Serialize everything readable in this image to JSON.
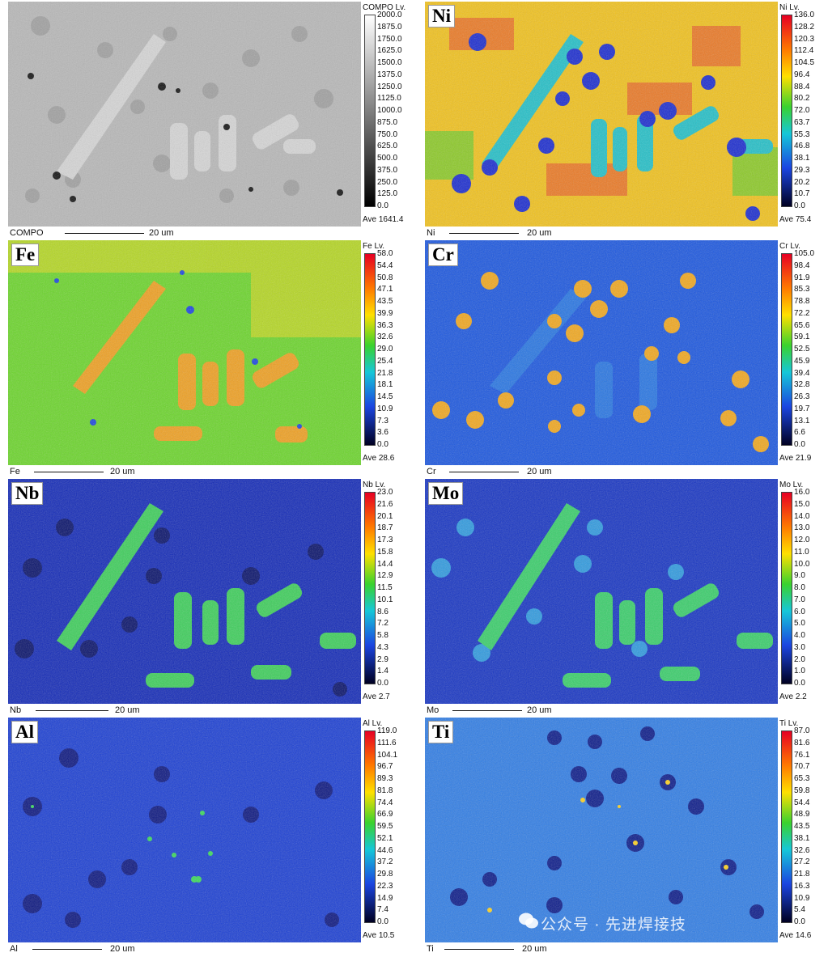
{
  "panels": [
    {
      "id": "compo",
      "label": "",
      "scale_title": "COMPO Lv.",
      "ticks": [
        "2000.0",
        "1875.0",
        "1750.0",
        "1625.0",
        "1500.0",
        "1375.0",
        "1250.0",
        "1125.0",
        "1000.0",
        "875.0",
        "750.0",
        "625.0",
        "500.0",
        "375.0",
        "250.0",
        "125.0",
        "0.0"
      ],
      "ave": "Ave 1641.4",
      "caption": "COMPO",
      "scale_bar": "20 um",
      "palette": "gray"
    },
    {
      "id": "ni",
      "label": "Ni",
      "scale_title": "Ni Lv.",
      "ticks": [
        "136.0",
        "128.2",
        "120.3",
        "112.4",
        "104.5",
        "96.4",
        "88.4",
        "80.2",
        "72.0",
        "63.7",
        "55.3",
        "46.8",
        "38.1",
        "29.3",
        "20.2",
        "10.7",
        "0.0"
      ],
      "ave": "Ave 75.4",
      "caption": "Ni",
      "scale_bar": "20 um",
      "palette": "jet"
    },
    {
      "id": "fe",
      "label": "Fe",
      "scale_title": "Fe Lv.",
      "ticks": [
        "58.0",
        "54.4",
        "50.8",
        "47.1",
        "43.5",
        "39.9",
        "36.3",
        "32.6",
        "29.0",
        "25.4",
        "21.8",
        "18.1",
        "14.5",
        "10.9",
        "7.3",
        "3.6",
        "0.0"
      ],
      "ave": "Ave 28.6",
      "caption": "Fe",
      "scale_bar": "20 um",
      "palette": "jet"
    },
    {
      "id": "cr",
      "label": "Cr",
      "scale_title": "Cr Lv.",
      "ticks": [
        "105.0",
        "98.4",
        "91.9",
        "85.3",
        "78.8",
        "72.2",
        "65.6",
        "59.1",
        "52.5",
        "45.9",
        "39.4",
        "32.8",
        "26.3",
        "19.7",
        "13.1",
        "6.6",
        "0.0"
      ],
      "ave": "Ave 21.9",
      "caption": "Cr",
      "scale_bar": "20 um",
      "palette": "jet"
    },
    {
      "id": "nb",
      "label": "Nb",
      "scale_title": "Nb Lv.",
      "ticks": [
        "23.0",
        "21.6",
        "20.1",
        "18.7",
        "17.3",
        "15.8",
        "14.4",
        "12.9",
        "11.5",
        "10.1",
        "8.6",
        "7.2",
        "5.8",
        "4.3",
        "2.9",
        "1.4",
        "0.0"
      ],
      "ave": "Ave 2.7",
      "caption": "Nb",
      "scale_bar": "20 um",
      "palette": "jet"
    },
    {
      "id": "mo",
      "label": "Mo",
      "scale_title": "Mo Lv.",
      "ticks": [
        "16.0",
        "15.0",
        "14.0",
        "13.0",
        "12.0",
        "11.0",
        "10.0",
        "9.0",
        "8.0",
        "7.0",
        "6.0",
        "5.0",
        "4.0",
        "3.0",
        "2.0",
        "1.0",
        "0.0"
      ],
      "ave": "Ave 2.2",
      "caption": "Mo",
      "scale_bar": "20 um",
      "palette": "jet"
    },
    {
      "id": "al",
      "label": "Al",
      "scale_title": "Al Lv.",
      "ticks": [
        "119.0",
        "111.6",
        "104.1",
        "96.7",
        "89.3",
        "81.8",
        "74.4",
        "66.9",
        "59.5",
        "52.1",
        "44.6",
        "37.2",
        "29.8",
        "22.3",
        "14.9",
        "7.4",
        "0.0"
      ],
      "ave": "Ave 10.5",
      "caption": "Al",
      "scale_bar": "20 um",
      "palette": "jet"
    },
    {
      "id": "ti",
      "label": "Ti",
      "scale_title": "Ti Lv.",
      "ticks": [
        "87.0",
        "81.6",
        "76.1",
        "70.7",
        "65.3",
        "59.8",
        "54.4",
        "48.9",
        "43.5",
        "38.1",
        "32.6",
        "27.2",
        "21.8",
        "16.3",
        "10.9",
        "5.4",
        "0.0"
      ],
      "ave": "Ave 14.6",
      "caption": "Ti",
      "scale_bar": "20 um",
      "palette": "jet"
    }
  ],
  "watermark": "公众号 · 先进焊接技",
  "colors": {
    "jet_high": "#e8132a",
    "jet_mid": "#33cc33",
    "jet_low": "#1a2fd6",
    "jet_floor": "#000033"
  }
}
